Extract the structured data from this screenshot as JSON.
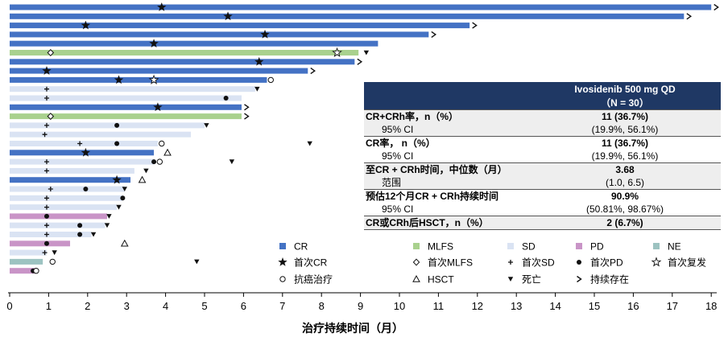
{
  "chart_data": {
    "type": "swimmer",
    "xlabel": "治疗持续时间（月）",
    "x_ticks": [
      0,
      1,
      2,
      3,
      4,
      5,
      6,
      7,
      8,
      9,
      10,
      11,
      12,
      13,
      14,
      15,
      16,
      17,
      18
    ],
    "xlim": [
      0,
      18.2
    ],
    "colors": {
      "CR": "#4472c4",
      "MLFS": "#a9d18e",
      "SD": "#dae3f3",
      "PD": "#c994c7",
      "NE": "#9dc3c1"
    },
    "legend": [
      {
        "label": "CR",
        "kind": "box",
        "key": "CR"
      },
      {
        "label": "MLFS",
        "kind": "box",
        "key": "MLFS"
      },
      {
        "label": "SD",
        "kind": "box",
        "key": "SD"
      },
      {
        "label": "PD",
        "kind": "box",
        "key": "PD"
      },
      {
        "label": "NE",
        "kind": "box",
        "key": "NE"
      },
      {
        "label": "首次CR",
        "kind": "marker",
        "key": "star"
      },
      {
        "label": "首次MLFS",
        "kind": "marker",
        "key": "diamond"
      },
      {
        "label": "首次SD",
        "kind": "marker",
        "key": "plus"
      },
      {
        "label": "首次PD",
        "kind": "marker",
        "key": "dot"
      },
      {
        "label": "首次复发",
        "kind": "marker",
        "key": "star-open"
      },
      {
        "label": "抗癌治疗",
        "kind": "marker",
        "key": "circle-open"
      },
      {
        "label": "HSCT",
        "kind": "marker",
        "key": "triangle-open"
      },
      {
        "label": "死亡",
        "kind": "marker",
        "key": "tri-down"
      },
      {
        "label": "持续存在",
        "kind": "marker",
        "key": "arrow"
      }
    ],
    "patients": [
      {
        "response": "CR",
        "duration": 18.0,
        "ongoing": true,
        "markers": [
          {
            "type": "star",
            "x": 3.9
          }
        ]
      },
      {
        "response": "CR",
        "duration": 17.3,
        "ongoing": true,
        "markers": [
          {
            "type": "star",
            "x": 5.6
          }
        ]
      },
      {
        "response": "CR",
        "duration": 11.8,
        "ongoing": true,
        "markers": [
          {
            "type": "star",
            "x": 1.95
          }
        ]
      },
      {
        "response": "CR",
        "duration": 10.75,
        "ongoing": true,
        "markers": [
          {
            "type": "star",
            "x": 6.55
          }
        ]
      },
      {
        "response": "CR",
        "duration": 9.45,
        "ongoing": false,
        "markers": [
          {
            "type": "star",
            "x": 3.7
          }
        ]
      },
      {
        "response": "MLFS",
        "duration": 8.95,
        "ongoing": false,
        "markers": [
          {
            "type": "diamond",
            "x": 1.05
          },
          {
            "type": "star-open",
            "x": 8.4
          },
          {
            "type": "tri-down",
            "x": 9.15
          }
        ]
      },
      {
        "response": "CR",
        "duration": 8.85,
        "ongoing": true,
        "markers": [
          {
            "type": "star",
            "x": 6.4
          }
        ]
      },
      {
        "response": "CR",
        "duration": 7.65,
        "ongoing": true,
        "markers": [
          {
            "type": "star",
            "x": 0.95
          }
        ]
      },
      {
        "response": "CR",
        "duration": 6.6,
        "ongoing": false,
        "markers": [
          {
            "type": "star",
            "x": 2.8
          },
          {
            "type": "star-open",
            "x": 3.7
          },
          {
            "type": "circle-open",
            "x": 6.7
          }
        ]
      },
      {
        "response": "SD",
        "duration": 6.3,
        "ongoing": false,
        "markers": [
          {
            "type": "plus",
            "x": 0.95
          },
          {
            "type": "tri-down",
            "x": 6.35
          }
        ]
      },
      {
        "response": "SD",
        "duration": 5.95,
        "ongoing": false,
        "markers": [
          {
            "type": "plus",
            "x": 0.95
          },
          {
            "type": "dot",
            "x": 5.55
          }
        ]
      },
      {
        "response": "CR",
        "duration": 5.95,
        "ongoing": true,
        "markers": [
          {
            "type": "star",
            "x": 3.8
          }
        ]
      },
      {
        "response": "MLFS",
        "duration": 5.95,
        "ongoing": true,
        "markers": [
          {
            "type": "diamond",
            "x": 1.05
          }
        ]
      },
      {
        "response": "SD",
        "duration": 5.0,
        "ongoing": false,
        "markers": [
          {
            "type": "plus",
            "x": 0.95
          },
          {
            "type": "dot",
            "x": 2.75
          },
          {
            "type": "tri-down",
            "x": 5.05
          }
        ]
      },
      {
        "response": "SD",
        "duration": 4.65,
        "ongoing": false,
        "markers": [
          {
            "type": "plus",
            "x": 0.9
          }
        ]
      },
      {
        "response": "SD",
        "duration": 3.8,
        "ongoing": false,
        "markers": [
          {
            "type": "plus",
            "x": 1.8
          },
          {
            "type": "dot",
            "x": 2.75
          },
          {
            "type": "circle-open",
            "x": 3.9
          },
          {
            "type": "tri-down",
            "x": 7.7
          }
        ]
      },
      {
        "response": "CR",
        "duration": 3.7,
        "ongoing": false,
        "markers": [
          {
            "type": "star",
            "x": 1.95
          },
          {
            "type": "triangle-open",
            "x": 4.05
          }
        ]
      },
      {
        "response": "SD",
        "duration": 3.7,
        "ongoing": false,
        "markers": [
          {
            "type": "plus",
            "x": 0.95
          },
          {
            "type": "dot",
            "x": 3.7
          },
          {
            "type": "circle-open",
            "x": 3.85
          },
          {
            "type": "tri-down",
            "x": 5.7
          }
        ]
      },
      {
        "response": "SD",
        "duration": 3.2,
        "ongoing": false,
        "markers": [
          {
            "type": "plus",
            "x": 0.95
          },
          {
            "type": "tri-down",
            "x": 3.5
          }
        ]
      },
      {
        "response": "CR",
        "duration": 3.1,
        "ongoing": false,
        "markers": [
          {
            "type": "star",
            "x": 2.75
          },
          {
            "type": "triangle-open",
            "x": 3.4
          }
        ]
      },
      {
        "response": "SD",
        "duration": 2.95,
        "ongoing": false,
        "markers": [
          {
            "type": "plus",
            "x": 1.05
          },
          {
            "type": "dot",
            "x": 1.95
          },
          {
            "type": "tri-down",
            "x": 2.95
          }
        ]
      },
      {
        "response": "SD",
        "duration": 2.9,
        "ongoing": false,
        "markers": [
          {
            "type": "plus",
            "x": 0.95
          },
          {
            "type": "dot",
            "x": 2.9
          }
        ]
      },
      {
        "response": "SD",
        "duration": 2.75,
        "ongoing": false,
        "markers": [
          {
            "type": "plus",
            "x": 0.95
          },
          {
            "type": "tri-down",
            "x": 2.8
          }
        ]
      },
      {
        "response": "PD",
        "duration": 2.5,
        "ongoing": false,
        "markers": [
          {
            "type": "dot",
            "x": 0.95
          },
          {
            "type": "tri-down",
            "x": 2.55
          }
        ]
      },
      {
        "response": "SD",
        "duration": 2.45,
        "ongoing": false,
        "markers": [
          {
            "type": "plus",
            "x": 0.95
          },
          {
            "type": "dot",
            "x": 1.8
          },
          {
            "type": "tri-down",
            "x": 2.5
          }
        ]
      },
      {
        "response": "SD",
        "duration": 2.1,
        "ongoing": false,
        "markers": [
          {
            "type": "plus",
            "x": 0.95
          },
          {
            "type": "dot",
            "x": 1.8
          },
          {
            "type": "tri-down",
            "x": 2.15
          }
        ]
      },
      {
        "response": "PD",
        "duration": 1.55,
        "ongoing": false,
        "markers": [
          {
            "type": "dot",
            "x": 0.95
          },
          {
            "type": "triangle-open",
            "x": 2.95
          }
        ]
      },
      {
        "response": "SD",
        "duration": 0.95,
        "ongoing": false,
        "markers": [
          {
            "type": "plus",
            "x": 0.9
          },
          {
            "type": "tri-down",
            "x": 1.15
          }
        ]
      },
      {
        "response": "NE",
        "duration": 0.85,
        "ongoing": false,
        "markers": [
          {
            "type": "circle-open",
            "x": 1.1
          },
          {
            "type": "tri-down",
            "x": 4.8
          }
        ]
      },
      {
        "response": "PD",
        "duration": 0.65,
        "ongoing": false,
        "markers": [
          {
            "type": "dot",
            "x": 0.6
          },
          {
            "type": "circle-open",
            "x": 0.68
          }
        ]
      }
    ]
  },
  "table": {
    "header_line1": "Ivosidenib 500 mg QD",
    "header_line2": "（N = 30）",
    "rows": [
      {
        "label": "CR+CRh率，n（%）",
        "value": "11 (36.7%)",
        "sub_label": "95% CI",
        "sub_value": "(19.9%, 56.1%)"
      },
      {
        "label": "CR率， n（%）",
        "value": "11 (36.7%)",
        "sub_label": "95% CI",
        "sub_value": "(19.9%, 56.1%)"
      },
      {
        "label": "至CR + CRh时间，中位数（月）",
        "value": "3.68",
        "sub_label": "范围",
        "sub_value": "(1.0, 6.5)"
      },
      {
        "label": "预估12个月CR + CRh持续时间",
        "value": "90.9%",
        "sub_label": "95% CI",
        "sub_value": "(50.81%, 98.67%)"
      },
      {
        "label": "CR或CRh后HSCT，n（%）",
        "value": "2 (6.7%)"
      }
    ]
  }
}
